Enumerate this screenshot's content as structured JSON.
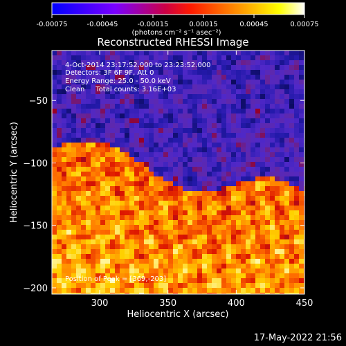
{
  "colorbar": {
    "min": -0.00075,
    "max": 0.00075,
    "tick_labels": [
      "-0.00075",
      "-0.00045",
      "-0.00015",
      "0.00015",
      "0.00045",
      "0.00075"
    ],
    "tick_values": [
      -0.00075,
      -0.00045,
      -0.00015,
      0.00015,
      0.00045,
      0.00075
    ],
    "unit_label": "(photons cm⁻² s⁻¹ asec⁻²)",
    "colormap": [
      "#0000ff",
      "#8000ff",
      "#ff0000",
      "#ffa500",
      "#ffff00",
      "#ffffff"
    ]
  },
  "chart_data": {
    "type": "heatmap",
    "title": "Reconstructed RHESSI Image",
    "xlabel": "Heliocentric X (arcsec)",
    "ylabel": "Heliocentric Y (arcsec)",
    "xlim": [
      265,
      450
    ],
    "ylim": [
      -205,
      -10
    ],
    "x_ticks": [
      300,
      350,
      400,
      450
    ],
    "y_ticks": [
      -50,
      -100,
      -150,
      -200
    ],
    "x_tick_labels": [
      "300",
      "350",
      "400",
      "450"
    ],
    "y_tick_labels": [
      "−50",
      "−100",
      "−150",
      "−200"
    ],
    "grid": false,
    "annotations": [
      "4-Oct-2014 23:17:52.000 to 23:23:52.000",
      "Detectors: 3F 6F 9F, Att 0",
      "Energy Range: 25.0 - 50.0 keV",
      "Clean     Total counts: 3.16E+03"
    ],
    "peak_label": "Position of Peak = [369,-203]",
    "peak_position": [
      369,
      -203
    ]
  },
  "timestamp": "17-May-2022 21:56"
}
